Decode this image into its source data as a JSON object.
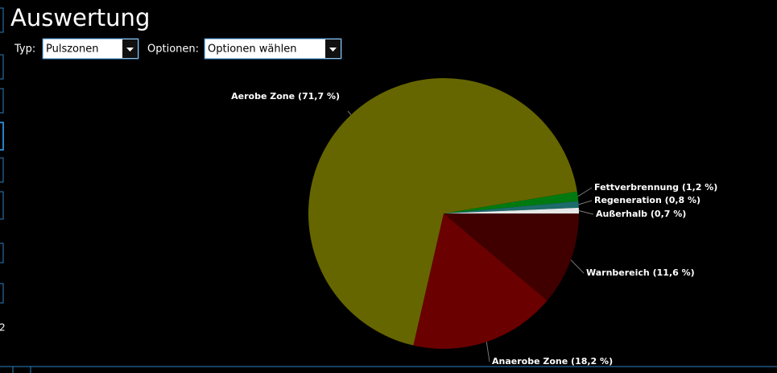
{
  "header": {
    "title": "Auswertung"
  },
  "controls": {
    "type_label": "Typ:",
    "type_value": "Pulszonen",
    "options_label": "Optionen:",
    "options_value": "Optionen wählen"
  },
  "side_fragment": "2",
  "chart_data": {
    "type": "pie",
    "categories": [
      "Warnbereich",
      "Anaerobe Zone",
      "Aerobe Zone",
      "Fettverbrennung",
      "Regeneration",
      "Außerhalb"
    ],
    "values": [
      11.6,
      18.2,
      71.7,
      1.2,
      0.8,
      0.7
    ],
    "value_labels": [
      "(11,6 %)",
      "(18,2 %)",
      "(71,7 %)",
      "(1,2 %)",
      "(0,8 %)",
      "(0,7 %)"
    ],
    "colors": [
      "#400000",
      "#6b0000",
      "#666600",
      "#007a10",
      "#1d6b6b",
      "#e6e6e6"
    ]
  }
}
